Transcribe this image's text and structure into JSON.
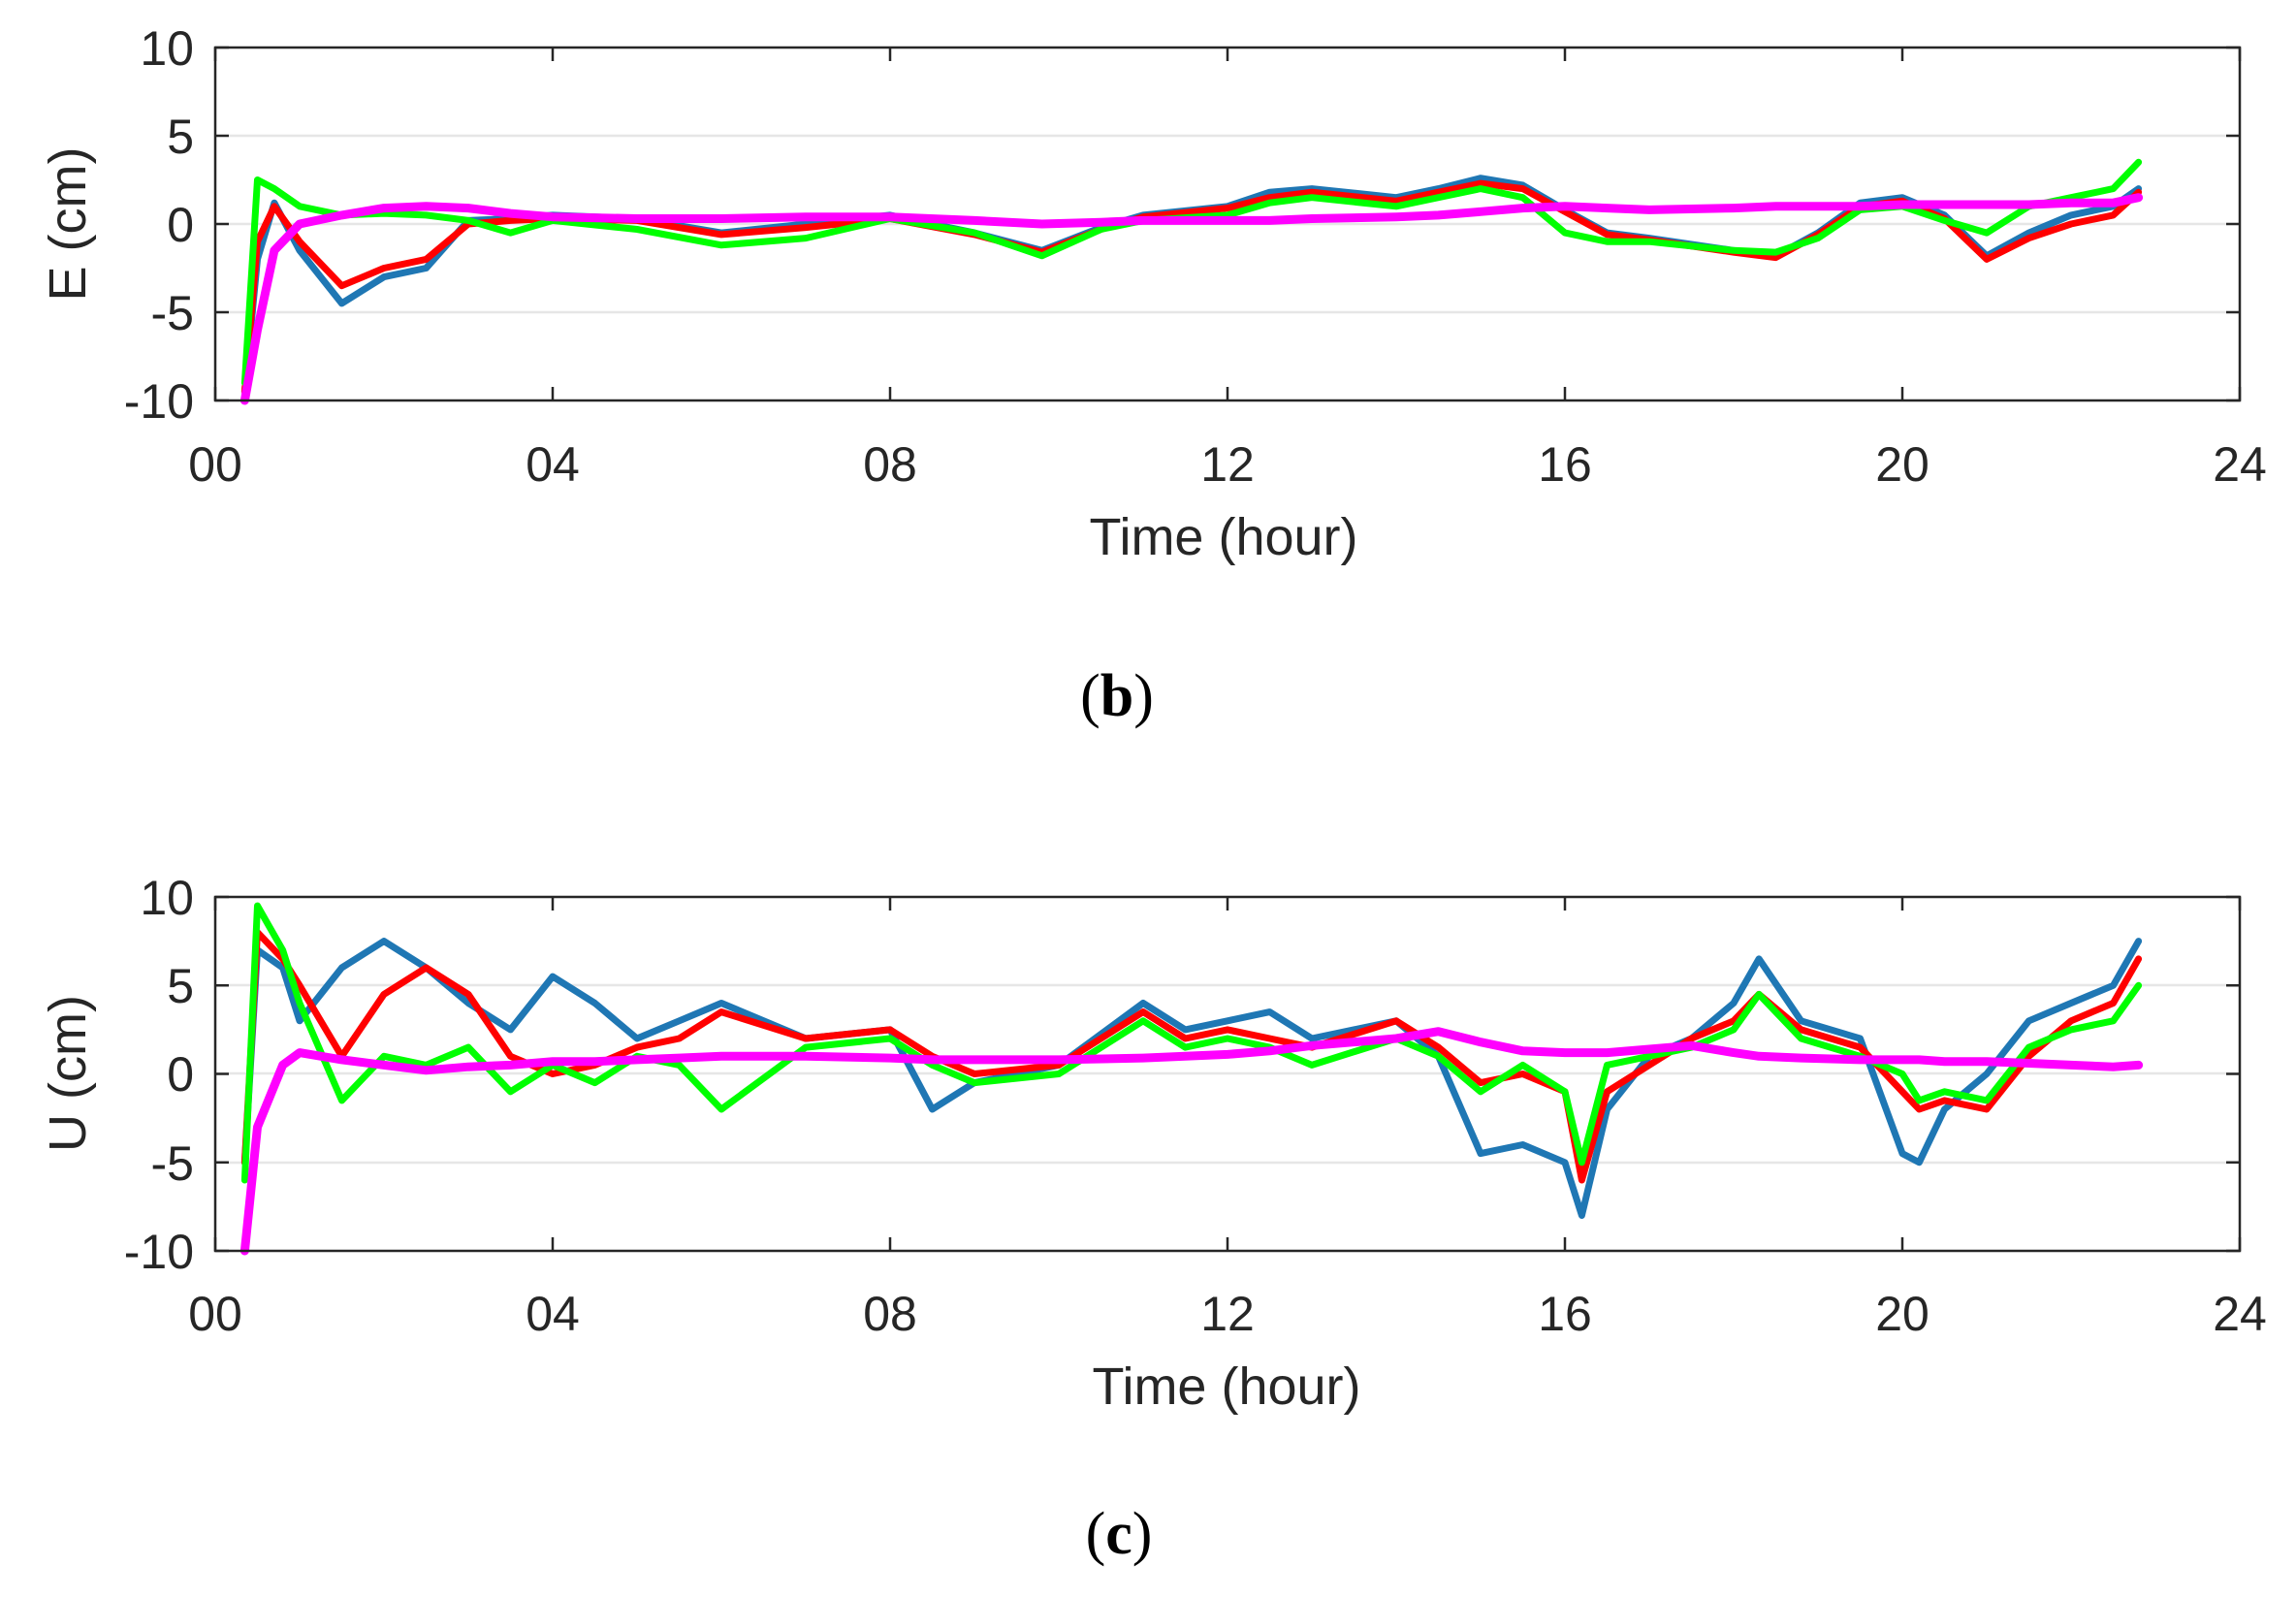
{
  "figure": {
    "panels": [
      "b",
      "c"
    ]
  },
  "chart_data": [
    {
      "type": "line",
      "panel_tag": "b",
      "title": "",
      "xlabel": "Time (hour)",
      "ylabel": "E (cm)",
      "xlim": [
        0,
        24
      ],
      "ylim": [
        -10,
        10
      ],
      "x_ticks": [
        0,
        4,
        8,
        12,
        16,
        20,
        24
      ],
      "x_tick_labels": [
        "00",
        "04",
        "08",
        "12",
        "16",
        "20",
        "24"
      ],
      "y_ticks": [
        10,
        5,
        0,
        -5,
        -10
      ],
      "y_tick_labels": [
        "10",
        "5",
        "0",
        "-5",
        "-10"
      ],
      "grid": "horizontal",
      "legend": "none",
      "x": [
        0.35,
        0.5,
        0.7,
        1.0,
        1.5,
        2.0,
        2.5,
        3.0,
        3.5,
        4.0,
        5.0,
        6.0,
        7.0,
        8.0,
        9.0,
        9.8,
        10.5,
        11.0,
        12.0,
        12.5,
        13.0,
        14.0,
        14.5,
        15.0,
        15.5,
        16.0,
        16.5,
        17.0,
        18.0,
        18.5,
        19.0,
        19.5,
        20.0,
        20.5,
        21.0,
        21.5,
        22.0,
        22.5,
        22.8
      ],
      "series": [
        {
          "name": "blue",
          "color": "#1f77b4",
          "values": [
            -9.5,
            -2,
            1.2,
            -1.5,
            -4.5,
            -3.0,
            -2.5,
            0.2,
            0.3,
            0.5,
            0.3,
            -0.5,
            0.0,
            0.5,
            -0.5,
            -1.5,
            -0.2,
            0.5,
            1.0,
            1.8,
            2.0,
            1.5,
            2.0,
            2.6,
            2.2,
            0.8,
            -0.5,
            -0.8,
            -1.5,
            -1.8,
            -0.5,
            1.2,
            1.5,
            0.5,
            -1.8,
            -0.5,
            0.5,
            1.0,
            2.0
          ]
        },
        {
          "name": "red",
          "color": "#ff0000",
          "values": [
            -9.5,
            -1,
            1.0,
            -1.0,
            -3.5,
            -2.5,
            -2.0,
            0.0,
            0.2,
            0.3,
            0.2,
            -0.6,
            -0.2,
            0.3,
            -0.6,
            -1.6,
            -0.3,
            0.4,
            0.9,
            1.5,
            1.8,
            1.3,
            1.8,
            2.3,
            2.0,
            0.7,
            -0.6,
            -0.9,
            -1.6,
            -1.9,
            -0.6,
            1.0,
            1.3,
            0.3,
            -2.0,
            -0.8,
            0.0,
            0.5,
            1.8
          ]
        },
        {
          "name": "green",
          "color": "#00ff00",
          "values": [
            -9.0,
            2.5,
            2.0,
            1.0,
            0.5,
            0.6,
            0.5,
            0.2,
            -0.5,
            0.2,
            -0.3,
            -1.2,
            -0.8,
            0.3,
            -0.5,
            -1.8,
            -0.3,
            0.2,
            0.5,
            1.2,
            1.5,
            1.0,
            1.5,
            2.0,
            1.5,
            -0.5,
            -1.0,
            -1.0,
            -1.5,
            -1.6,
            -0.8,
            0.8,
            1.0,
            0.2,
            -0.5,
            1.0,
            1.5,
            2.0,
            3.5
          ]
        },
        {
          "name": "magenta",
          "color": "#ff00ff",
          "values": [
            -10.0,
            -6.0,
            -1.5,
            0.0,
            0.5,
            0.9,
            1.0,
            0.9,
            0.6,
            0.4,
            0.3,
            0.3,
            0.4,
            0.4,
            0.2,
            0.0,
            0.1,
            0.2,
            0.2,
            0.2,
            0.3,
            0.4,
            0.5,
            0.7,
            0.9,
            1.0,
            0.9,
            0.8,
            0.9,
            1.0,
            1.0,
            1.0,
            1.1,
            1.1,
            1.1,
            1.1,
            1.2,
            1.2,
            1.5
          ]
        }
      ]
    },
    {
      "type": "line",
      "panel_tag": "c",
      "title": "",
      "xlabel": "Time (hour)",
      "ylabel": "U (cm)",
      "xlim": [
        0,
        24
      ],
      "ylim": [
        -10,
        10
      ],
      "x_ticks": [
        0,
        4,
        8,
        12,
        16,
        20,
        24
      ],
      "x_tick_labels": [
        "00",
        "04",
        "08",
        "12",
        "16",
        "20",
        "24"
      ],
      "y_ticks": [
        10,
        5,
        0,
        -5,
        -10
      ],
      "y_tick_labels": [
        "10",
        "5",
        "0",
        "-5",
        "-10"
      ],
      "grid": "horizontal",
      "legend": "none",
      "x": [
        0.35,
        0.5,
        0.8,
        1.0,
        1.5,
        2.0,
        2.5,
        3.0,
        3.5,
        4.0,
        4.5,
        5.0,
        5.5,
        6.0,
        7.0,
        8.0,
        8.5,
        9.0,
        10.0,
        11.0,
        11.5,
        12.0,
        12.5,
        13.0,
        14.0,
        14.5,
        15.0,
        15.5,
        16.0,
        16.2,
        16.5,
        17.0,
        17.5,
        18.0,
        18.3,
        18.8,
        19.5,
        20.0,
        20.2,
        20.5,
        21.0,
        21.5,
        22.0,
        22.5,
        22.8
      ],
      "series": [
        {
          "name": "blue",
          "color": "#1f77b4",
          "values": [
            -5.0,
            7.0,
            6.0,
            3.0,
            6.0,
            7.5,
            6.0,
            4.0,
            2.5,
            5.5,
            4.0,
            2.0,
            3.0,
            4.0,
            2.0,
            2.5,
            -2.0,
            -0.5,
            0.5,
            4.0,
            2.5,
            3.0,
            3.5,
            2.0,
            3.0,
            1.0,
            -4.5,
            -4.0,
            -5.0,
            -8.0,
            -2.0,
            1.0,
            2.0,
            4.0,
            6.5,
            3.0,
            2.0,
            -4.5,
            -5.0,
            -2.0,
            0.0,
            3.0,
            4.0,
            5.0,
            7.5
          ]
        },
        {
          "name": "red",
          "color": "#ff0000",
          "values": [
            -5.0,
            8.0,
            6.5,
            5.0,
            1.0,
            4.5,
            6.0,
            4.5,
            1.0,
            0.0,
            0.5,
            1.5,
            2.0,
            3.5,
            2.0,
            2.5,
            1.0,
            0.0,
            0.5,
            3.5,
            2.0,
            2.5,
            2.0,
            1.5,
            3.0,
            1.5,
            -0.5,
            0.0,
            -1.0,
            -6.0,
            -1.0,
            0.5,
            2.0,
            3.0,
            4.5,
            2.5,
            1.5,
            -1.0,
            -2.0,
            -1.5,
            -2.0,
            1.0,
            3.0,
            4.0,
            6.5
          ]
        },
        {
          "name": "green",
          "color": "#00ff00",
          "values": [
            -6.0,
            9.5,
            7.0,
            4.0,
            -1.5,
            1.0,
            0.5,
            1.5,
            -1.0,
            0.5,
            -0.5,
            1.0,
            0.5,
            -2.0,
            1.5,
            2.0,
            0.5,
            -0.5,
            0.0,
            3.0,
            1.5,
            2.0,
            1.5,
            0.5,
            2.0,
            1.0,
            -1.0,
            0.5,
            -1.0,
            -5.0,
            0.5,
            1.0,
            1.5,
            2.5,
            4.5,
            2.0,
            1.0,
            0.0,
            -1.5,
            -1.0,
            -1.5,
            1.5,
            2.5,
            3.0,
            5.0
          ]
        },
        {
          "name": "magenta",
          "color": "#ff00ff",
          "values": [
            -10.0,
            -3.0,
            0.5,
            1.2,
            0.8,
            0.5,
            0.2,
            0.4,
            0.5,
            0.7,
            0.7,
            0.8,
            0.9,
            1.0,
            1.0,
            0.9,
            0.8,
            0.8,
            0.8,
            0.9,
            1.0,
            1.1,
            1.3,
            1.6,
            2.0,
            2.4,
            1.8,
            1.3,
            1.2,
            1.2,
            1.2,
            1.4,
            1.6,
            1.2,
            1.0,
            0.9,
            0.8,
            0.8,
            0.8,
            0.7,
            0.7,
            0.6,
            0.5,
            0.4,
            0.5
          ]
        }
      ]
    }
  ]
}
